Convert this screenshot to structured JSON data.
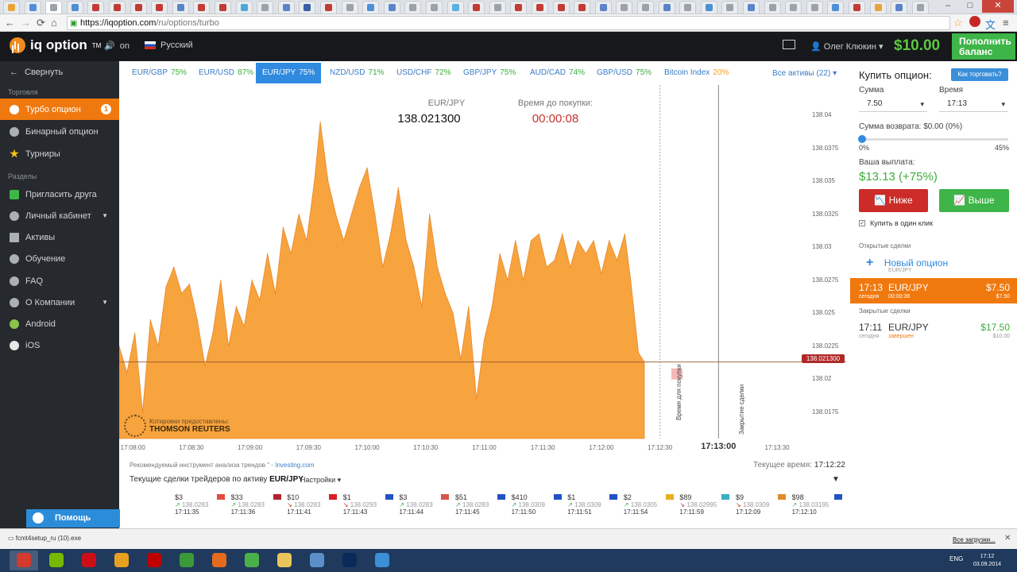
{
  "browser": {
    "url_host": "https://iqoption.com",
    "url_path": "/ru/options/turbo",
    "tab_colors": [
      "#e8a33a",
      "#4f8fd6",
      "#9aa2ab",
      "#4f8fd6",
      "#c23b34",
      "#c23b34",
      "#c23b34",
      "#c23b34",
      "#5b83c9",
      "#c23b34",
      "#c23b34",
      "#4fa9d8",
      "#9aa2ab",
      "#5b83c9",
      "#3a5fa8",
      "#c23b34",
      "#9aa2ab",
      "#4f8fd6",
      "#5b83c9",
      "#9aa2ab",
      "#9aa2ab",
      "#5ab0e3",
      "#c23b34",
      "#9aa2ab",
      "#c23b34",
      "#c23b34",
      "#c23b34",
      "#c23b34",
      "#5b83c9",
      "#9aa2ab",
      "#9aa2ab",
      "#5b83c9",
      "#9aa2ab",
      "#4f8fd6",
      "#9aa2ab",
      "#5b83c9",
      "#9aa2ab",
      "#9aa2ab",
      "#9aa2ab",
      "#4f8fd6",
      "#c23b34",
      "#e8a33a",
      "#5b83c9",
      "#9aa2ab"
    ]
  },
  "header": {
    "logo_text": "iq option",
    "logo_tm": "TM",
    "sound_label": "on",
    "language": "Русский",
    "user_name": "Олег Клюкин",
    "balance": "$10.00",
    "topup_label": "Пополнить баланс"
  },
  "sidebar": {
    "collapse_label": "Свернуть",
    "section_trading": "Торговля",
    "section_sections": "Разделы",
    "items": [
      {
        "label": "Турбо опцион",
        "badge": "1"
      },
      {
        "label": "Бинарный опцион"
      },
      {
        "label": "Турниры"
      },
      {
        "label": "Пригласить друга"
      },
      {
        "label": "Личный кабинет"
      },
      {
        "label": "Активы"
      },
      {
        "label": "Обучение"
      },
      {
        "label": "FAQ"
      },
      {
        "label": "О Компании"
      },
      {
        "label": "Android"
      },
      {
        "label": "iOS"
      }
    ],
    "help_label": "Помощь онлайн"
  },
  "assets": {
    "tabs": [
      {
        "name": "EUR/GBP",
        "pct": "75%"
      },
      {
        "name": "EUR/USD",
        "pct": "87%"
      },
      {
        "name": "EUR/JPY",
        "pct": "75%"
      },
      {
        "name": "NZD/USD",
        "pct": "71%"
      },
      {
        "name": "USD/CHF",
        "pct": "72%"
      },
      {
        "name": "GBP/JPY",
        "pct": "75%"
      },
      {
        "name": "AUD/CAD",
        "pct": "74%"
      },
      {
        "name": "GBP/USD",
        "pct": "75%"
      },
      {
        "name": "Bitcoin Index",
        "pct": "20%"
      }
    ],
    "all_label": "Все активы (22) ▾"
  },
  "chart": {
    "pair": "EUR/JPY",
    "price": "138.021300",
    "time_left_label": "Время до покупки:",
    "time_left": "00:00:08",
    "quotes_label": "Котировки предоставлены:",
    "quotes_provider": "THOMSON REUTERS",
    "price_tag": "138.021300",
    "buy_time_label": "Время для покупки",
    "close_label": "Закрытие сделки",
    "y_ticks": [
      "138.04",
      "138.0375",
      "138.035",
      "138.0325",
      "138.03",
      "138.0275",
      "138.025",
      "138.0225",
      "138.02",
      "138.0175"
    ],
    "x_ticks": [
      "17:08:00",
      "17:08:30",
      "17:09:00",
      "17:09:30",
      "17:10:00",
      "17:10:30",
      "17:11:00",
      "17:11:30",
      "17:12:00",
      "17:12:30",
      "17:13:30"
    ],
    "x_close": "17:13:00"
  },
  "chart_data": {
    "type": "area",
    "title": "",
    "xlabel": "",
    "ylabel": "",
    "ylim": [
      138.0155,
      138.042
    ],
    "x_range": [
      "17:07:53",
      "17:13:43"
    ],
    "current_price": 138.0213,
    "series": [
      {
        "color": "#f7a33e",
        "values": [
          [
            "17:07:53",
            138.0225
          ],
          [
            "17:07:57",
            138.0205
          ],
          [
            "17:08:01",
            138.0235
          ],
          [
            "17:08:05",
            138.0175
          ],
          [
            "17:08:09",
            138.0245
          ],
          [
            "17:08:13",
            138.0225
          ],
          [
            "17:08:17",
            138.027
          ],
          [
            "17:08:21",
            138.0285
          ],
          [
            "17:08:25",
            138.0265
          ],
          [
            "17:08:29",
            138.0272
          ],
          [
            "17:08:33",
            138.0245
          ],
          [
            "17:08:37",
            138.021
          ],
          [
            "17:08:41",
            138.0235
          ],
          [
            "17:08:45",
            138.0275
          ],
          [
            "17:08:49",
            138.0225
          ],
          [
            "17:08:53",
            138.0255
          ],
          [
            "17:08:57",
            138.024
          ],
          [
            "17:09:01",
            138.0275
          ],
          [
            "17:09:05",
            138.026
          ],
          [
            "17:09:09",
            138.0295
          ],
          [
            "17:09:13",
            138.0265
          ],
          [
            "17:09:17",
            138.0315
          ],
          [
            "17:09:21",
            138.0295
          ],
          [
            "17:09:25",
            138.0325
          ],
          [
            "17:09:29",
            138.0305
          ],
          [
            "17:09:33",
            138.035
          ],
          [
            "17:09:36",
            138.0395
          ],
          [
            "17:09:40",
            138.035
          ],
          [
            "17:09:44",
            138.0325
          ],
          [
            "17:09:48",
            138.0305
          ],
          [
            "17:09:52",
            138.0325
          ],
          [
            "17:09:56",
            138.0345
          ],
          [
            "17:10:00",
            138.036
          ],
          [
            "17:10:04",
            138.0325
          ],
          [
            "17:10:08",
            138.0285
          ],
          [
            "17:10:12",
            138.031
          ],
          [
            "17:10:16",
            138.0345
          ],
          [
            "17:10:20",
            138.0305
          ],
          [
            "17:10:24",
            138.0285
          ],
          [
            "17:10:28",
            138.0255
          ],
          [
            "17:10:32",
            138.0325
          ],
          [
            "17:10:36",
            138.0285
          ],
          [
            "17:10:40",
            138.0265
          ],
          [
            "17:10:44",
            138.025
          ],
          [
            "17:10:48",
            138.0215
          ],
          [
            "17:10:52",
            138.0255
          ],
          [
            "17:10:56",
            138.0185
          ],
          [
            "17:11:00",
            138.023
          ],
          [
            "17:11:04",
            138.0255
          ],
          [
            "17:11:08",
            138.0295
          ],
          [
            "17:11:12",
            138.0275
          ],
          [
            "17:11:16",
            138.0305
          ],
          [
            "17:11:20",
            138.0275
          ],
          [
            "17:11:24",
            138.0305
          ],
          [
            "17:11:28",
            138.031
          ],
          [
            "17:11:32",
            138.0285
          ],
          [
            "17:11:36",
            138.029
          ],
          [
            "17:11:40",
            138.031
          ],
          [
            "17:11:44",
            138.0285
          ],
          [
            "17:11:48",
            138.0305
          ],
          [
            "17:11:52",
            138.0295
          ],
          [
            "17:11:56",
            138.0305
          ],
          [
            "17:12:00",
            138.028
          ],
          [
            "17:12:04",
            138.0305
          ],
          [
            "17:12:08",
            138.029
          ],
          [
            "17:12:12",
            138.031
          ],
          [
            "17:12:15",
            138.0275
          ],
          [
            "17:12:19",
            138.022
          ],
          [
            "17:12:22",
            138.0213
          ]
        ]
      }
    ]
  },
  "bottom": {
    "recommend_text": "Рекомендуемый инструмент анализа трендов \" -",
    "recommend_link": "Investing.com",
    "current_time_label": "Текущее время:",
    "current_time": "17:12:22",
    "traders_label": "Текущие сделки трейдеров по активу",
    "traders_asset": "EUR/JPY",
    "settings_label": "Настройки ▾",
    "trades": [
      {
        "amt": "$3",
        "price": "138.0283",
        "time": "17:11:35",
        "dir": "up",
        "flag": "#e34b3c"
      },
      {
        "amt": "$33",
        "price": "138.0283",
        "time": "17:11:36",
        "dir": "up",
        "flag": "#b4232f"
      },
      {
        "amt": "$10",
        "price": "138.0283",
        "time": "17:11:41",
        "dir": "down",
        "flag": "#d61f26"
      },
      {
        "amt": "$1",
        "price": "138.0293",
        "time": "17:11:43",
        "dir": "down",
        "flag": "#2153c7"
      },
      {
        "amt": "$3",
        "price": "138.0283",
        "time": "17:11:44",
        "dir": "up",
        "flag": "#d4584a"
      },
      {
        "amt": "$51",
        "price": "138.0283",
        "time": "17:11:45",
        "dir": "up",
        "flag": "#2153c7"
      },
      {
        "amt": "$410",
        "price": "138.0309",
        "time": "17:11:50",
        "dir": "up",
        "flag": "#2153c7"
      },
      {
        "amt": "$1",
        "price": "138.0309",
        "time": "17:11:51",
        "dir": "up",
        "flag": "#2153c7"
      },
      {
        "amt": "$2",
        "price": "138.0305",
        "time": "17:11:54",
        "dir": "up",
        "flag": "#e8b020"
      },
      {
        "amt": "$89",
        "price": "138.02995",
        "time": "17:11:59",
        "dir": "down",
        "flag": "#39b0c0"
      },
      {
        "amt": "$9",
        "price": "138.0309",
        "time": "17:12:09",
        "dir": "down",
        "flag": "#e08a2a"
      },
      {
        "amt": "$98",
        "price": "138.03195",
        "time": "17:12:10",
        "dir": "up",
        "flag": "#2153c7"
      }
    ]
  },
  "panel": {
    "title": "Купить опцион:",
    "how_label": "Как торговать?",
    "amount_label": "Сумма",
    "amount": "7.50",
    "time_label": "Время",
    "time": "17:13",
    "refund_label": "Сумма возврата: $0.00 (0%)",
    "slider_min": "0%",
    "slider_max": "45%",
    "refund_level": 0,
    "payout_label": "Ваша выплата:",
    "payout": "$13.13 (+75%)",
    "down_label": "Ниже",
    "up_label": "Выше",
    "oneclick_label": "Купить в один клик",
    "open_deals_label": "Открытые сделки",
    "new_option_label": "Новый опцион",
    "new_option_asset": "EUR/JPY",
    "open_deal": {
      "time": "17:13",
      "asset": "EUR/JPY",
      "value": "$7.50",
      "day": "сегодня",
      "left": "00:00:38",
      "value2": "$7.50"
    },
    "closed_deals_label": "Закрытые сделки",
    "closed_deal": {
      "time": "17:11",
      "asset": "EUR/JPY",
      "value": "$17.50",
      "day": "сегодня",
      "status": "завершен",
      "value2": "$10.00"
    }
  },
  "downloads": {
    "file": "fcmt4setup_ru (10).exe",
    "all_label": "Все загрузки..."
  },
  "taskbar": {
    "apps": [
      {
        "name": "chrome-icon",
        "color": "#d23b2e"
      },
      {
        "name": "nvidia-icon",
        "color": "#76b900"
      },
      {
        "name": "opera-icon",
        "color": "#cc0f16"
      },
      {
        "name": "app-icon",
        "color": "#e8a020"
      },
      {
        "name": "filezilla-icon",
        "color": "#bf0000"
      },
      {
        "name": "app2-icon",
        "color": "#3a9a3a"
      },
      {
        "name": "firefox-icon",
        "color": "#e66a1c"
      },
      {
        "name": "app3-icon",
        "color": "#4ab04a"
      },
      {
        "name": "folder-icon",
        "color": "#e8c45a"
      },
      {
        "name": "app4-icon",
        "color": "#5a8fc9"
      },
      {
        "name": "photoshop-icon",
        "color": "#0a2a5a"
      },
      {
        "name": "app5-icon",
        "color": "#3a8fd8"
      }
    ],
    "lang": "ENG",
    "time": "17:12",
    "date": "03.09.2014"
  }
}
